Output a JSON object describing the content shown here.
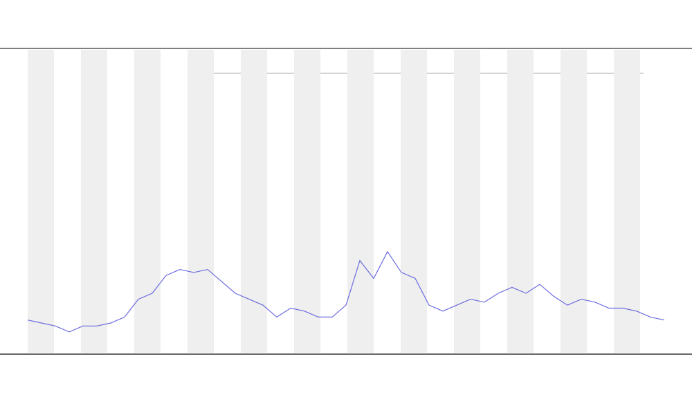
{
  "chart_data": {
    "type": "line",
    "x": [
      1,
      2,
      3,
      4,
      5,
      6,
      7,
      8,
      9,
      10,
      11,
      12,
      13,
      14,
      15,
      16,
      17,
      18,
      19,
      20,
      21,
      22,
      23,
      24,
      25,
      26,
      27,
      28,
      29,
      30,
      31,
      32,
      33,
      34,
      35,
      36,
      37,
      38,
      39,
      40,
      41,
      42,
      43,
      44,
      45,
      46,
      47
    ],
    "xlim": [
      1,
      47
    ],
    "ylim": [
      0,
      100
    ],
    "series": [
      {
        "color": "#6a6ae0",
        "values": [
          11,
          10,
          9,
          7,
          9,
          9,
          10,
          12,
          18,
          20,
          26,
          28,
          27,
          28,
          24,
          20,
          18,
          16,
          12,
          15,
          14,
          12,
          12,
          16,
          31,
          25,
          34,
          27,
          25,
          16,
          14,
          16,
          18,
          17,
          20,
          22,
          20,
          23,
          19,
          16,
          18,
          17,
          15,
          15,
          14,
          12,
          11
        ]
      }
    ]
  }
}
